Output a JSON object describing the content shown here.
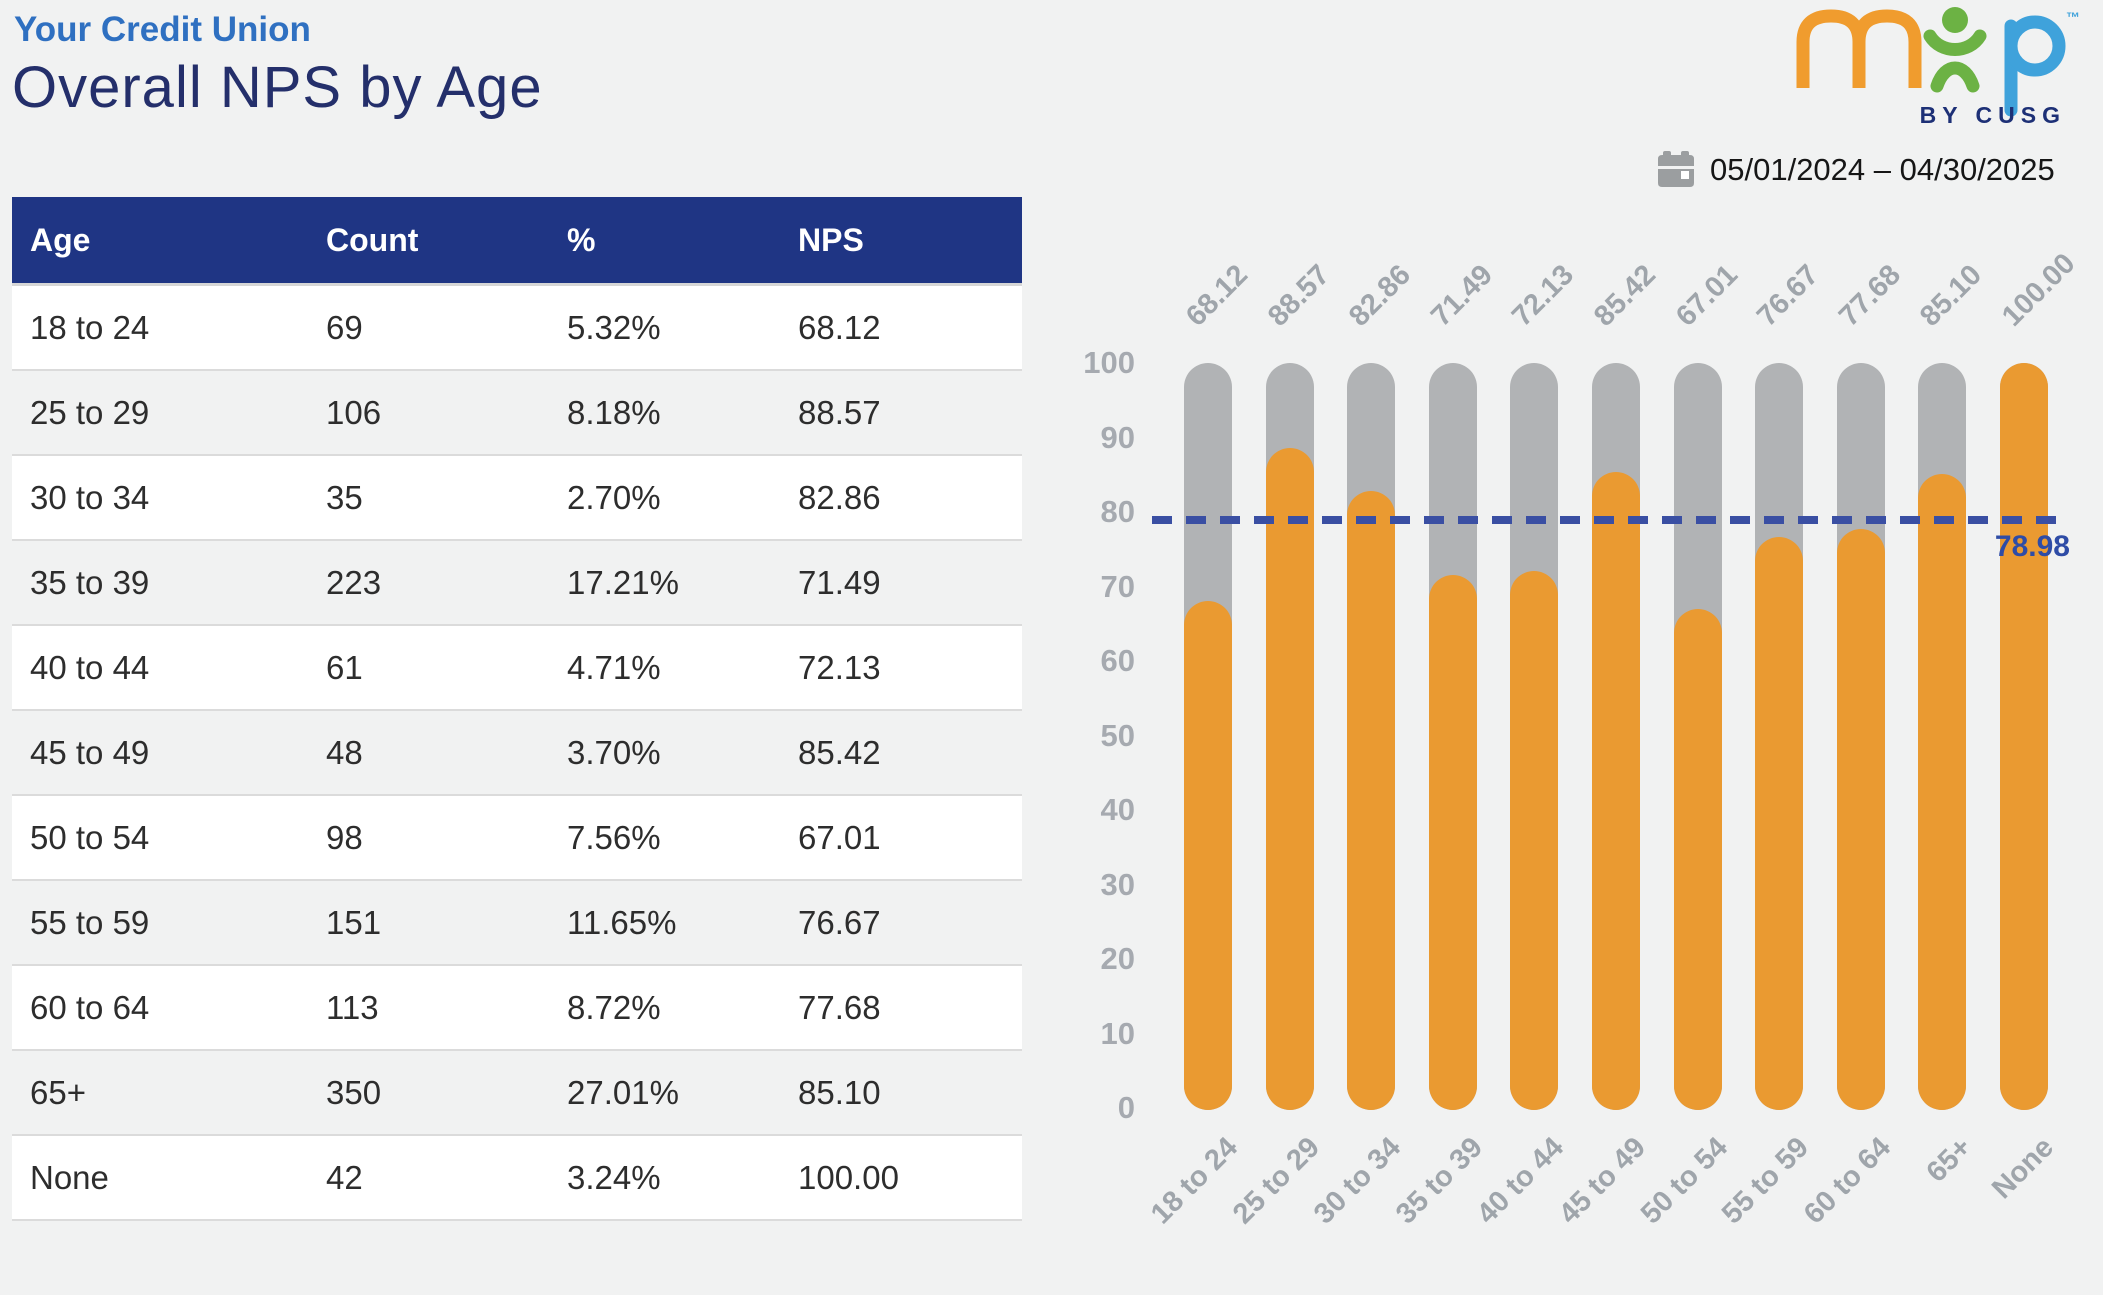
{
  "header": {
    "company": "Your Credit Union",
    "title": "Overall NPS by Age"
  },
  "logo": {
    "brand": "mxp",
    "sub": "BY CUSG",
    "tm": "™",
    "colors": {
      "m": "#f09c2e",
      "x": "#6cb244",
      "p": "#3fa2db",
      "sub_text": "#1d3076"
    }
  },
  "date_range": {
    "label": "05/01/2024 – 04/30/2025"
  },
  "table": {
    "columns": [
      "Age",
      "Count",
      "%",
      "NPS"
    ],
    "rows": [
      [
        "18 to 24",
        "69",
        "5.32%",
        "68.12"
      ],
      [
        "25 to 29",
        "106",
        "8.18%",
        "88.57"
      ],
      [
        "30 to 34",
        "35",
        "2.70%",
        "82.86"
      ],
      [
        "35 to 39",
        "223",
        "17.21%",
        "71.49"
      ],
      [
        "40 to 44",
        "61",
        "4.71%",
        "72.13"
      ],
      [
        "45 to 49",
        "48",
        "3.70%",
        "85.42"
      ],
      [
        "50 to 54",
        "98",
        "7.56%",
        "67.01"
      ],
      [
        "55 to 59",
        "151",
        "11.65%",
        "76.67"
      ],
      [
        "60 to 64",
        "113",
        "8.72%",
        "77.68"
      ],
      [
        "65+",
        "350",
        "27.01%",
        "85.10"
      ],
      [
        "None",
        "42",
        "3.24%",
        "100.00"
      ]
    ]
  },
  "chart_data": {
    "type": "bar",
    "title": "Overall NPS by Age",
    "categories": [
      "18 to 24",
      "25 to 29",
      "30 to 34",
      "35 to 39",
      "40 to 44",
      "45 to 49",
      "50 to 54",
      "55 to 59",
      "60 to 64",
      "65+",
      "None"
    ],
    "values": [
      68.12,
      88.57,
      82.86,
      71.49,
      72.13,
      85.42,
      67.01,
      76.67,
      77.68,
      85.1,
      100.0
    ],
    "value_labels": [
      "68.12",
      "88.57",
      "82.86",
      "71.49",
      "72.13",
      "85.42",
      "67.01",
      "76.67",
      "77.68",
      "85.10",
      "100.00"
    ],
    "average": 78.98,
    "average_label": "78.98",
    "ylim": [
      0,
      100
    ],
    "yticks": [
      "0",
      "10",
      "20",
      "30",
      "40",
      "50",
      "60",
      "70",
      "80",
      "90",
      "100"
    ],
    "grid": false,
    "legend": "none",
    "colors": {
      "bar": "#ea9a31",
      "track": "#b1b3b5",
      "avg_line": "#3a4fa3",
      "avg_label": "#2e4ca6",
      "axis_text": "#a6aab0"
    }
  }
}
